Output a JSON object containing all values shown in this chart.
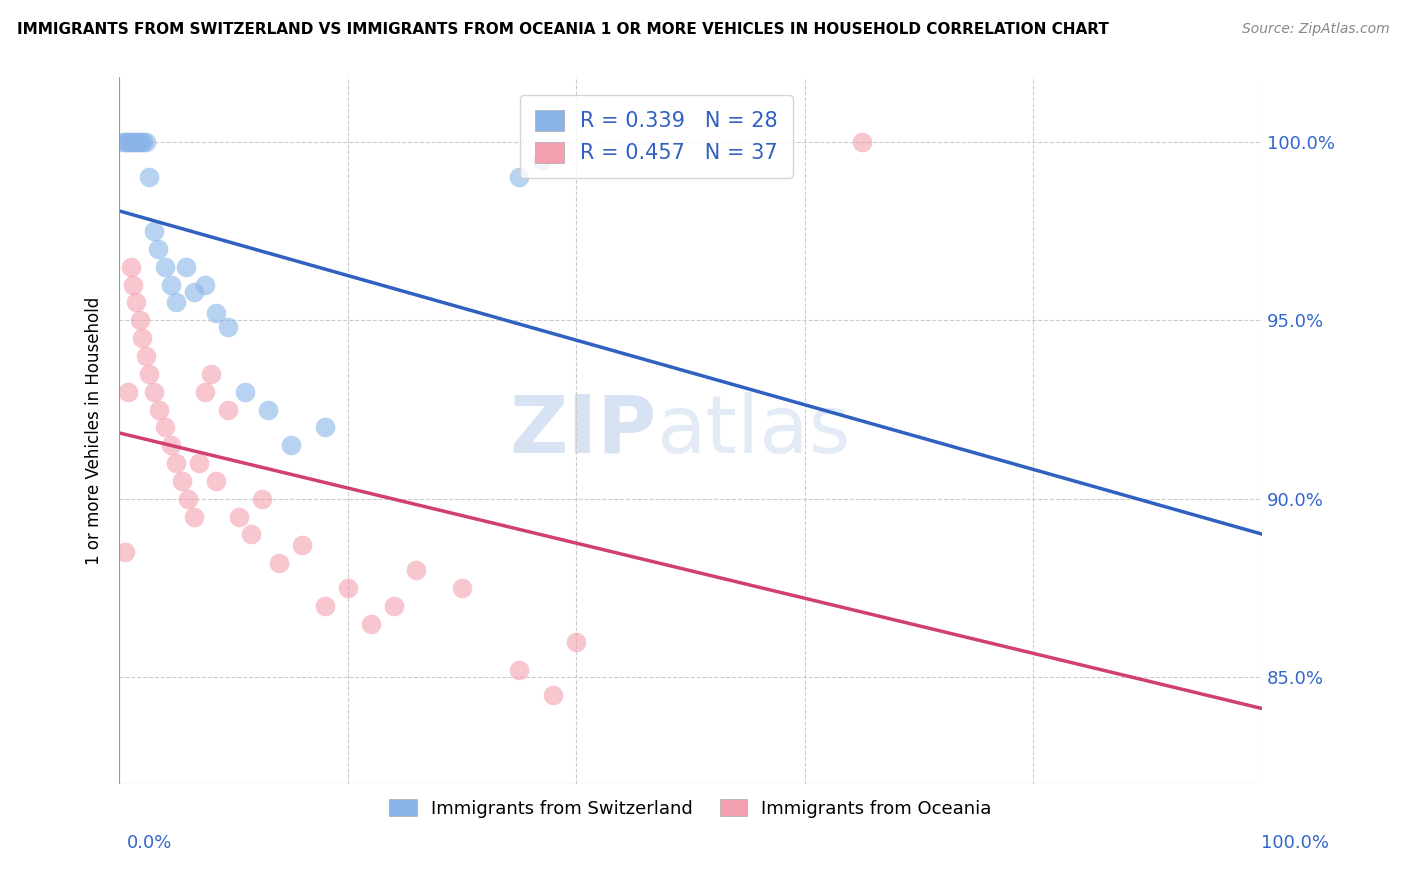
{
  "title": "IMMIGRANTS FROM SWITZERLAND VS IMMIGRANTS FROM OCEANIA 1 OR MORE VEHICLES IN HOUSEHOLD CORRELATION CHART",
  "source": "Source: ZipAtlas.com",
  "ylabel": "1 or more Vehicles in Household",
  "y_ticks": [
    85.0,
    90.0,
    95.0,
    100.0
  ],
  "y_tick_labels": [
    "85.0%",
    "90.0%",
    "95.0%",
    "100.0%"
  ],
  "x_min": 0.0,
  "x_max": 100.0,
  "y_min": 82.0,
  "y_max": 101.8,
  "blue_R": 0.339,
  "blue_N": 28,
  "pink_R": 0.457,
  "pink_N": 37,
  "blue_label": "Immigrants from Switzerland",
  "pink_label": "Immigrants from Oceania",
  "blue_color": "#8ab4e8",
  "pink_color": "#f4a0b0",
  "blue_line_color": "#3060c0",
  "pink_line_color": "#d04070",
  "legend_text_color": "#3060c0",
  "watermark_zip": "ZIP",
  "watermark_atlas": "atlas",
  "blue_scatter_x": [
    0.3,
    0.5,
    0.7,
    0.9,
    1.1,
    1.3,
    1.5,
    1.7,
    1.9,
    2.1,
    2.3,
    2.6,
    3.0,
    3.4,
    4.0,
    4.5,
    5.0,
    5.8,
    6.5,
    7.5,
    8.5,
    9.5,
    11.0,
    13.0,
    15.0,
    18.0,
    35.0,
    37.0
  ],
  "blue_scatter_y": [
    100.0,
    100.0,
    100.0,
    100.0,
    100.0,
    100.0,
    100.0,
    100.0,
    100.0,
    100.0,
    100.0,
    99.0,
    97.5,
    97.0,
    96.5,
    96.0,
    95.5,
    96.5,
    95.8,
    96.0,
    95.2,
    94.8,
    93.0,
    92.5,
    91.5,
    92.0,
    99.0,
    99.5
  ],
  "pink_scatter_x": [
    0.5,
    0.8,
    1.0,
    1.2,
    1.5,
    1.8,
    2.0,
    2.3,
    2.6,
    3.0,
    3.5,
    4.0,
    4.5,
    5.0,
    5.5,
    6.0,
    6.5,
    7.0,
    7.5,
    8.0,
    8.5,
    9.5,
    10.5,
    11.5,
    12.5,
    14.0,
    16.0,
    18.0,
    20.0,
    22.0,
    24.0,
    26.0,
    30.0,
    35.0,
    38.0,
    40.0,
    65.0
  ],
  "pink_scatter_y": [
    88.5,
    93.0,
    96.5,
    96.0,
    95.5,
    95.0,
    94.5,
    94.0,
    93.5,
    93.0,
    92.5,
    92.0,
    91.5,
    91.0,
    90.5,
    90.0,
    89.5,
    91.0,
    93.0,
    93.5,
    90.5,
    92.5,
    89.5,
    89.0,
    90.0,
    88.2,
    88.7,
    87.0,
    87.5,
    86.5,
    87.0,
    88.0,
    87.5,
    85.2,
    84.5,
    86.0,
    100.0
  ]
}
